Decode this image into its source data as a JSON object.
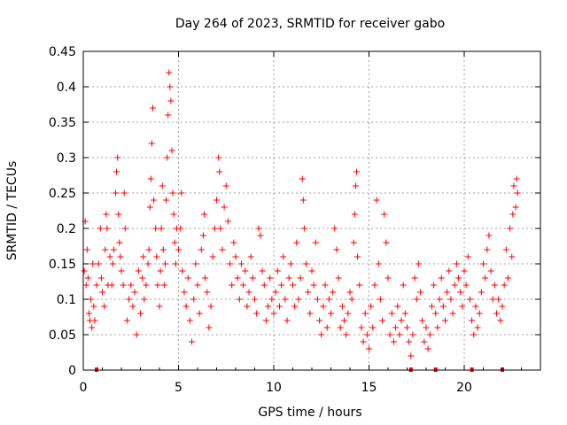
{
  "chart_data": {
    "type": "scatter",
    "title": "Day 264 of 2023, SRMTID for receiver gabo",
    "xlabel": "GPS time / hours",
    "ylabel": "SRMTID / TECUs",
    "xlim": [
      0,
      24
    ],
    "ylim": [
      0,
      0.45
    ],
    "x_ticks": [
      0,
      5,
      10,
      15,
      20
    ],
    "y_ticks": [
      0,
      0.05,
      0.1,
      0.15,
      0.2,
      0.25,
      0.3,
      0.35,
      0.4,
      0.45
    ],
    "x_tick_labels": [
      "0",
      "5",
      "10",
      "15",
      "20"
    ],
    "y_tick_labels": [
      "0",
      "0.05",
      "0.1",
      "0.15",
      "0.2",
      "0.25",
      "0.3",
      "0.35",
      "0.4",
      "0.45"
    ],
    "grid": true,
    "marker": "+",
    "series_color": "#ff0000",
    "zero_markers_x": [
      0.7,
      17.2,
      18.5,
      20.4,
      22.0
    ],
    "series": [
      {
        "name": "SRMTID",
        "points": [
          [
            0.05,
            0.14
          ],
          [
            0.1,
            0.21
          ],
          [
            0.15,
            0.12
          ],
          [
            0.2,
            0.17
          ],
          [
            0.25,
            0.13
          ],
          [
            0.3,
            0.08
          ],
          [
            0.35,
            0.07
          ],
          [
            0.4,
            0.1
          ],
          [
            0.45,
            0.06
          ],
          [
            0.5,
            0.15
          ],
          [
            0.55,
            0.09
          ],
          [
            0.6,
            0.07
          ],
          [
            0.7,
            0.12
          ],
          [
            0.8,
            0.15
          ],
          [
            0.9,
            0.2
          ],
          [
            0.95,
            0.13
          ],
          [
            1.0,
            0.11
          ],
          [
            1.1,
            0.09
          ],
          [
            1.15,
            0.17
          ],
          [
            1.2,
            0.22
          ],
          [
            1.25,
            0.2
          ],
          [
            1.3,
            0.12
          ],
          [
            1.4,
            0.16
          ],
          [
            1.5,
            0.12
          ],
          [
            1.55,
            0.15
          ],
          [
            1.6,
            0.17
          ],
          [
            1.7,
            0.25
          ],
          [
            1.75,
            0.28
          ],
          [
            1.8,
            0.3
          ],
          [
            1.85,
            0.22
          ],
          [
            1.9,
            0.18
          ],
          [
            1.95,
            0.16
          ],
          [
            2.0,
            0.14
          ],
          [
            2.1,
            0.12
          ],
          [
            2.15,
            0.25
          ],
          [
            2.2,
            0.2
          ],
          [
            2.3,
            0.07
          ],
          [
            2.4,
            0.1
          ],
          [
            2.5,
            0.12
          ],
          [
            2.6,
            0.09
          ],
          [
            2.7,
            0.11
          ],
          [
            2.8,
            0.05
          ],
          [
            2.9,
            0.14
          ],
          [
            3.0,
            0.08
          ],
          [
            3.1,
            0.13
          ],
          [
            3.15,
            0.16
          ],
          [
            3.2,
            0.1
          ],
          [
            3.3,
            0.12
          ],
          [
            3.4,
            0.15
          ],
          [
            3.45,
            0.17
          ],
          [
            3.5,
            0.23
          ],
          [
            3.55,
            0.27
          ],
          [
            3.6,
            0.32
          ],
          [
            3.65,
            0.37
          ],
          [
            3.7,
            0.24
          ],
          [
            3.8,
            0.2
          ],
          [
            3.85,
            0.16
          ],
          [
            3.9,
            0.12
          ],
          [
            4.0,
            0.09
          ],
          [
            4.05,
            0.14
          ],
          [
            4.1,
            0.2
          ],
          [
            4.15,
            0.26
          ],
          [
            4.2,
            0.17
          ],
          [
            4.25,
            0.12
          ],
          [
            4.3,
            0.15
          ],
          [
            4.35,
            0.24
          ],
          [
            4.4,
            0.3
          ],
          [
            4.45,
            0.36
          ],
          [
            4.5,
            0.42
          ],
          [
            4.55,
            0.4
          ],
          [
            4.6,
            0.38
          ],
          [
            4.65,
            0.31
          ],
          [
            4.7,
            0.25
          ],
          [
            4.75,
            0.22
          ],
          [
            4.8,
            0.18
          ],
          [
            4.85,
            0.15
          ],
          [
            4.9,
            0.2
          ],
          [
            5.0,
            0.17
          ],
          [
            5.1,
            0.2
          ],
          [
            5.15,
            0.25
          ],
          [
            5.2,
            0.14
          ],
          [
            5.3,
            0.11
          ],
          [
            5.4,
            0.09
          ],
          [
            5.5,
            0.13
          ],
          [
            5.6,
            0.07
          ],
          [
            5.7,
            0.04
          ],
          [
            5.8,
            0.1
          ],
          [
            5.9,
            0.15
          ],
          [
            6.0,
            0.12
          ],
          [
            6.1,
            0.08
          ],
          [
            6.2,
            0.17
          ],
          [
            6.3,
            0.19
          ],
          [
            6.35,
            0.22
          ],
          [
            6.4,
            0.13
          ],
          [
            6.5,
            0.11
          ],
          [
            6.6,
            0.06
          ],
          [
            6.7,
            0.09
          ],
          [
            6.8,
            0.16
          ],
          [
            6.9,
            0.2
          ],
          [
            7.0,
            0.24
          ],
          [
            7.1,
            0.3
          ],
          [
            7.15,
            0.28
          ],
          [
            7.2,
            0.2
          ],
          [
            7.3,
            0.17
          ],
          [
            7.4,
            0.23
          ],
          [
            7.5,
            0.26
          ],
          [
            7.6,
            0.21
          ],
          [
            7.7,
            0.15
          ],
          [
            7.8,
            0.12
          ],
          [
            7.9,
            0.18
          ],
          [
            8.0,
            0.16
          ],
          [
            8.1,
            0.13
          ],
          [
            8.2,
            0.1
          ],
          [
            8.3,
            0.15
          ],
          [
            8.4,
            0.12
          ],
          [
            8.5,
            0.14
          ],
          [
            8.6,
            0.09
          ],
          [
            8.7,
            0.11
          ],
          [
            8.8,
            0.16
          ],
          [
            8.9,
            0.13
          ],
          [
            9.0,
            0.1
          ],
          [
            9.1,
            0.08
          ],
          [
            9.2,
            0.2
          ],
          [
            9.3,
            0.19
          ],
          [
            9.4,
            0.14
          ],
          [
            9.5,
            0.12
          ],
          [
            9.6,
            0.07
          ],
          [
            9.7,
            0.09
          ],
          [
            9.8,
            0.13
          ],
          [
            9.9,
            0.1
          ],
          [
            10.0,
            0.08
          ],
          [
            10.1,
            0.11
          ],
          [
            10.2,
            0.14
          ],
          [
            10.3,
            0.09
          ],
          [
            10.4,
            0.12
          ],
          [
            10.5,
            0.16
          ],
          [
            10.6,
            0.1
          ],
          [
            10.7,
            0.07
          ],
          [
            10.8,
            0.13
          ],
          [
            10.9,
            0.15
          ],
          [
            11.0,
            0.12
          ],
          [
            11.1,
            0.09
          ],
          [
            11.2,
            0.18
          ],
          [
            11.3,
            0.1
          ],
          [
            11.4,
            0.13
          ],
          [
            11.5,
            0.27
          ],
          [
            11.55,
            0.24
          ],
          [
            11.6,
            0.2
          ],
          [
            11.7,
            0.15
          ],
          [
            11.8,
            0.11
          ],
          [
            11.9,
            0.08
          ],
          [
            12.0,
            0.14
          ],
          [
            12.1,
            0.12
          ],
          [
            12.2,
            0.18
          ],
          [
            12.3,
            0.1
          ],
          [
            12.4,
            0.07
          ],
          [
            12.5,
            0.05
          ],
          [
            12.6,
            0.09
          ],
          [
            12.7,
            0.12
          ],
          [
            12.8,
            0.06
          ],
          [
            12.9,
            0.1
          ],
          [
            13.0,
            0.08
          ],
          [
            13.1,
            0.11
          ],
          [
            13.2,
            0.2
          ],
          [
            13.3,
            0.17
          ],
          [
            13.4,
            0.13
          ],
          [
            13.5,
            0.06
          ],
          [
            13.6,
            0.09
          ],
          [
            13.7,
            0.07
          ],
          [
            13.8,
            0.05
          ],
          [
            13.9,
            0.08
          ],
          [
            14.0,
            0.11
          ],
          [
            14.1,
            0.1
          ],
          [
            14.2,
            0.18
          ],
          [
            14.25,
            0.22
          ],
          [
            14.3,
            0.26
          ],
          [
            14.35,
            0.28
          ],
          [
            14.4,
            0.16
          ],
          [
            14.5,
            0.12
          ],
          [
            14.6,
            0.06
          ],
          [
            14.7,
            0.04
          ],
          [
            14.8,
            0.08
          ],
          [
            14.9,
            0.05
          ],
          [
            15.0,
            0.03
          ],
          [
            15.1,
            0.09
          ],
          [
            15.2,
            0.06
          ],
          [
            15.3,
            0.12
          ],
          [
            15.4,
            0.24
          ],
          [
            15.5,
            0.15
          ],
          [
            15.6,
            0.1
          ],
          [
            15.7,
            0.07
          ],
          [
            15.8,
            0.22
          ],
          [
            15.9,
            0.18
          ],
          [
            16.0,
            0.13
          ],
          [
            16.1,
            0.05
          ],
          [
            16.2,
            0.08
          ],
          [
            16.3,
            0.04
          ],
          [
            16.4,
            0.06
          ],
          [
            16.5,
            0.09
          ],
          [
            16.6,
            0.05
          ],
          [
            16.7,
            0.07
          ],
          [
            16.8,
            0.12
          ],
          [
            16.9,
            0.08
          ],
          [
            17.0,
            0.06
          ],
          [
            17.1,
            0.04
          ],
          [
            17.2,
            0.02
          ],
          [
            17.3,
            0.05
          ],
          [
            17.4,
            0.13
          ],
          [
            17.5,
            0.1
          ],
          [
            17.6,
            0.15
          ],
          [
            17.7,
            0.11
          ],
          [
            17.8,
            0.07
          ],
          [
            17.9,
            0.04
          ],
          [
            18.0,
            0.06
          ],
          [
            18.1,
            0.03
          ],
          [
            18.2,
            0.05
          ],
          [
            18.3,
            0.09
          ],
          [
            18.4,
            0.12
          ],
          [
            18.5,
            0.08
          ],
          [
            18.6,
            0.06
          ],
          [
            18.7,
            0.1
          ],
          [
            18.8,
            0.13
          ],
          [
            18.9,
            0.09
          ],
          [
            19.0,
            0.07
          ],
          [
            19.1,
            0.11
          ],
          [
            19.2,
            0.14
          ],
          [
            19.3,
            0.1
          ],
          [
            19.4,
            0.08
          ],
          [
            19.5,
            0.12
          ],
          [
            19.6,
            0.15
          ],
          [
            19.7,
            0.13
          ],
          [
            19.8,
            0.11
          ],
          [
            19.9,
            0.09
          ],
          [
            20.0,
            0.14
          ],
          [
            20.1,
            0.12
          ],
          [
            20.2,
            0.16
          ],
          [
            20.3,
            0.1
          ],
          [
            20.4,
            0.07
          ],
          [
            20.5,
            0.05
          ],
          [
            20.6,
            0.09
          ],
          [
            20.7,
            0.06
          ],
          [
            20.8,
            0.08
          ],
          [
            20.9,
            0.11
          ],
          [
            21.0,
            0.15
          ],
          [
            21.1,
            0.13
          ],
          [
            21.2,
            0.17
          ],
          [
            21.3,
            0.19
          ],
          [
            21.4,
            0.14
          ],
          [
            21.5,
            0.1
          ],
          [
            21.6,
            0.12
          ],
          [
            21.7,
            0.08
          ],
          [
            21.8,
            0.1
          ],
          [
            21.9,
            0.07
          ],
          [
            22.0,
            0.09
          ],
          [
            22.1,
            0.12
          ],
          [
            22.2,
            0.17
          ],
          [
            22.3,
            0.13
          ],
          [
            22.4,
            0.2
          ],
          [
            22.5,
            0.16
          ],
          [
            22.55,
            0.22
          ],
          [
            22.6,
            0.26
          ],
          [
            22.7,
            0.23
          ],
          [
            22.75,
            0.27
          ],
          [
            22.8,
            0.25
          ]
        ]
      }
    ]
  }
}
